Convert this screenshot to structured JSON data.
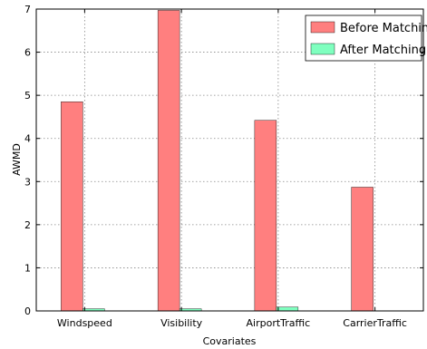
{
  "chart_data": {
    "type": "bar",
    "categories": [
      "Windspeed",
      "Visibility",
      "AirportTraffic",
      "CarrierTraffic"
    ],
    "series": [
      {
        "name": "Before Matching",
        "color": "#ff7f7f",
        "values": [
          4.85,
          6.97,
          4.42,
          2.87
        ]
      },
      {
        "name": "After Matching",
        "color": "#7fffbf",
        "values": [
          0.05,
          0.05,
          0.09,
          0.0
        ]
      }
    ],
    "xlabel": "Covariates",
    "ylabel": "AWMD",
    "ylim": [
      0,
      7
    ],
    "yticks": [
      "0",
      "1",
      "2",
      "3",
      "4",
      "5",
      "6",
      "7"
    ],
    "grid": true,
    "legend": "top-right"
  }
}
